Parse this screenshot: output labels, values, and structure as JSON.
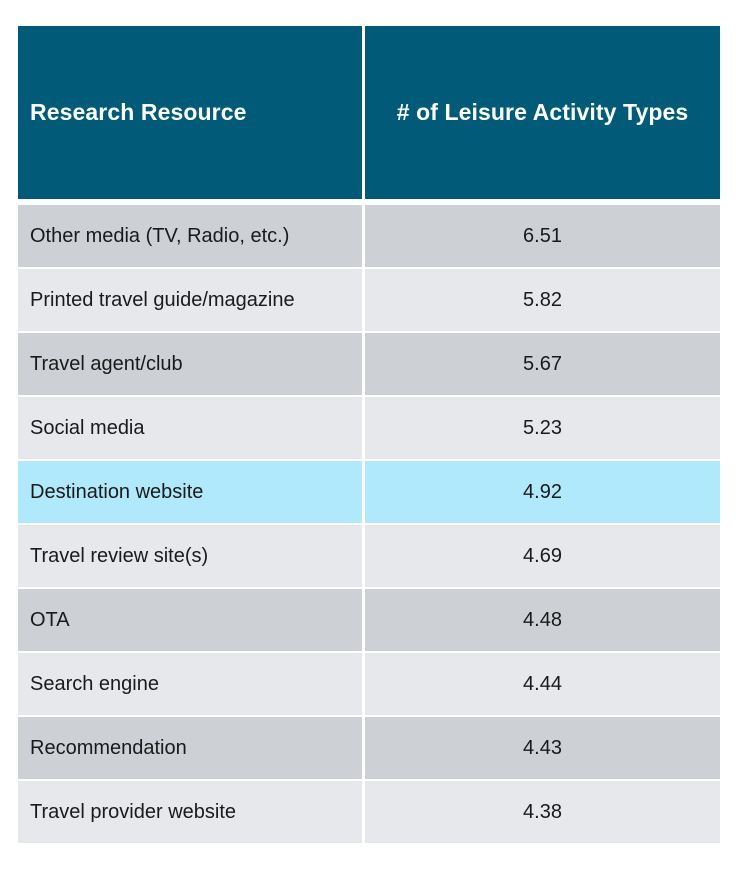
{
  "chart_data": {
    "type": "table",
    "columns": [
      "Research Resource",
      "# of Leisure Activity Types"
    ],
    "rows": [
      {
        "label": "Other media (TV, Radio, etc.)",
        "value": "6.51",
        "style": "dark"
      },
      {
        "label": "Printed travel guide/magazine",
        "value": "5.82",
        "style": "light"
      },
      {
        "label": "Travel agent/club",
        "value": "5.67",
        "style": "dark"
      },
      {
        "label": "Social media",
        "value": "5.23",
        "style": "light"
      },
      {
        "label": "Destination website",
        "value": "4.92",
        "style": "highlight"
      },
      {
        "label": "Travel review site(s)",
        "value": "4.69",
        "style": "light"
      },
      {
        "label": "OTA",
        "value": "4.48",
        "style": "dark"
      },
      {
        "label": "Search engine",
        "value": "4.44",
        "style": "light"
      },
      {
        "label": "Recommendation",
        "value": "4.43",
        "style": "dark"
      },
      {
        "label": "Travel provider website",
        "value": "4.38",
        "style": "light"
      }
    ],
    "colors": {
      "header": "#005a78",
      "row_dark": "#cdd0d5",
      "row_light": "#e6e8eb",
      "highlight": "#b0e9fb"
    }
  }
}
